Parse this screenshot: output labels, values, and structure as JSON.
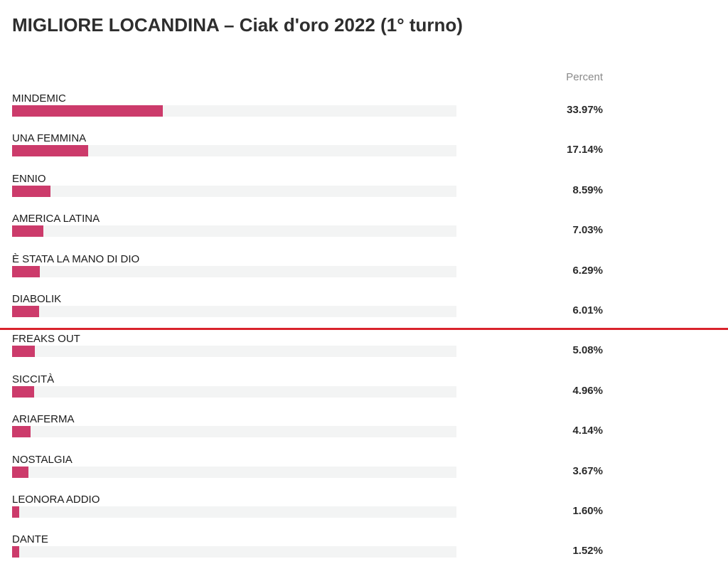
{
  "chart_data": {
    "type": "bar",
    "orientation": "horizontal",
    "title": "MIGLIORE LOCANDINA – Ciak d'oro 2022 (1° turno)",
    "value_header": "Percent",
    "xlim": [
      0,
      100
    ],
    "categories": [
      "MINDEMIC",
      "UNA FEMMINA",
      "ENNIO",
      "AMERICA LATINA",
      "È STATA LA MANO DI DIO",
      "DIABOLIK",
      "FREAKS OUT",
      "SICCITÀ",
      "ARIAFERMA",
      "NOSTALGIA",
      "LEONORA ADDIO",
      "DANTE"
    ],
    "values": [
      33.97,
      17.14,
      8.59,
      7.03,
      6.29,
      6.01,
      5.08,
      4.96,
      4.14,
      3.67,
      1.6,
      1.52
    ],
    "value_labels": [
      "33.97%",
      "17.14%",
      "8.59%",
      "7.03%",
      "6.29%",
      "6.01%",
      "5.08%",
      "4.96%",
      "4.14%",
      "3.67%",
      "1.60%",
      "1.52%"
    ],
    "bar_color": "#cc3b6b",
    "track_color": "#f3f4f4",
    "cutoff_line_color": "#d9232b",
    "cutoff_after_category": "DIABOLIK",
    "grid": false,
    "legend": "none"
  }
}
